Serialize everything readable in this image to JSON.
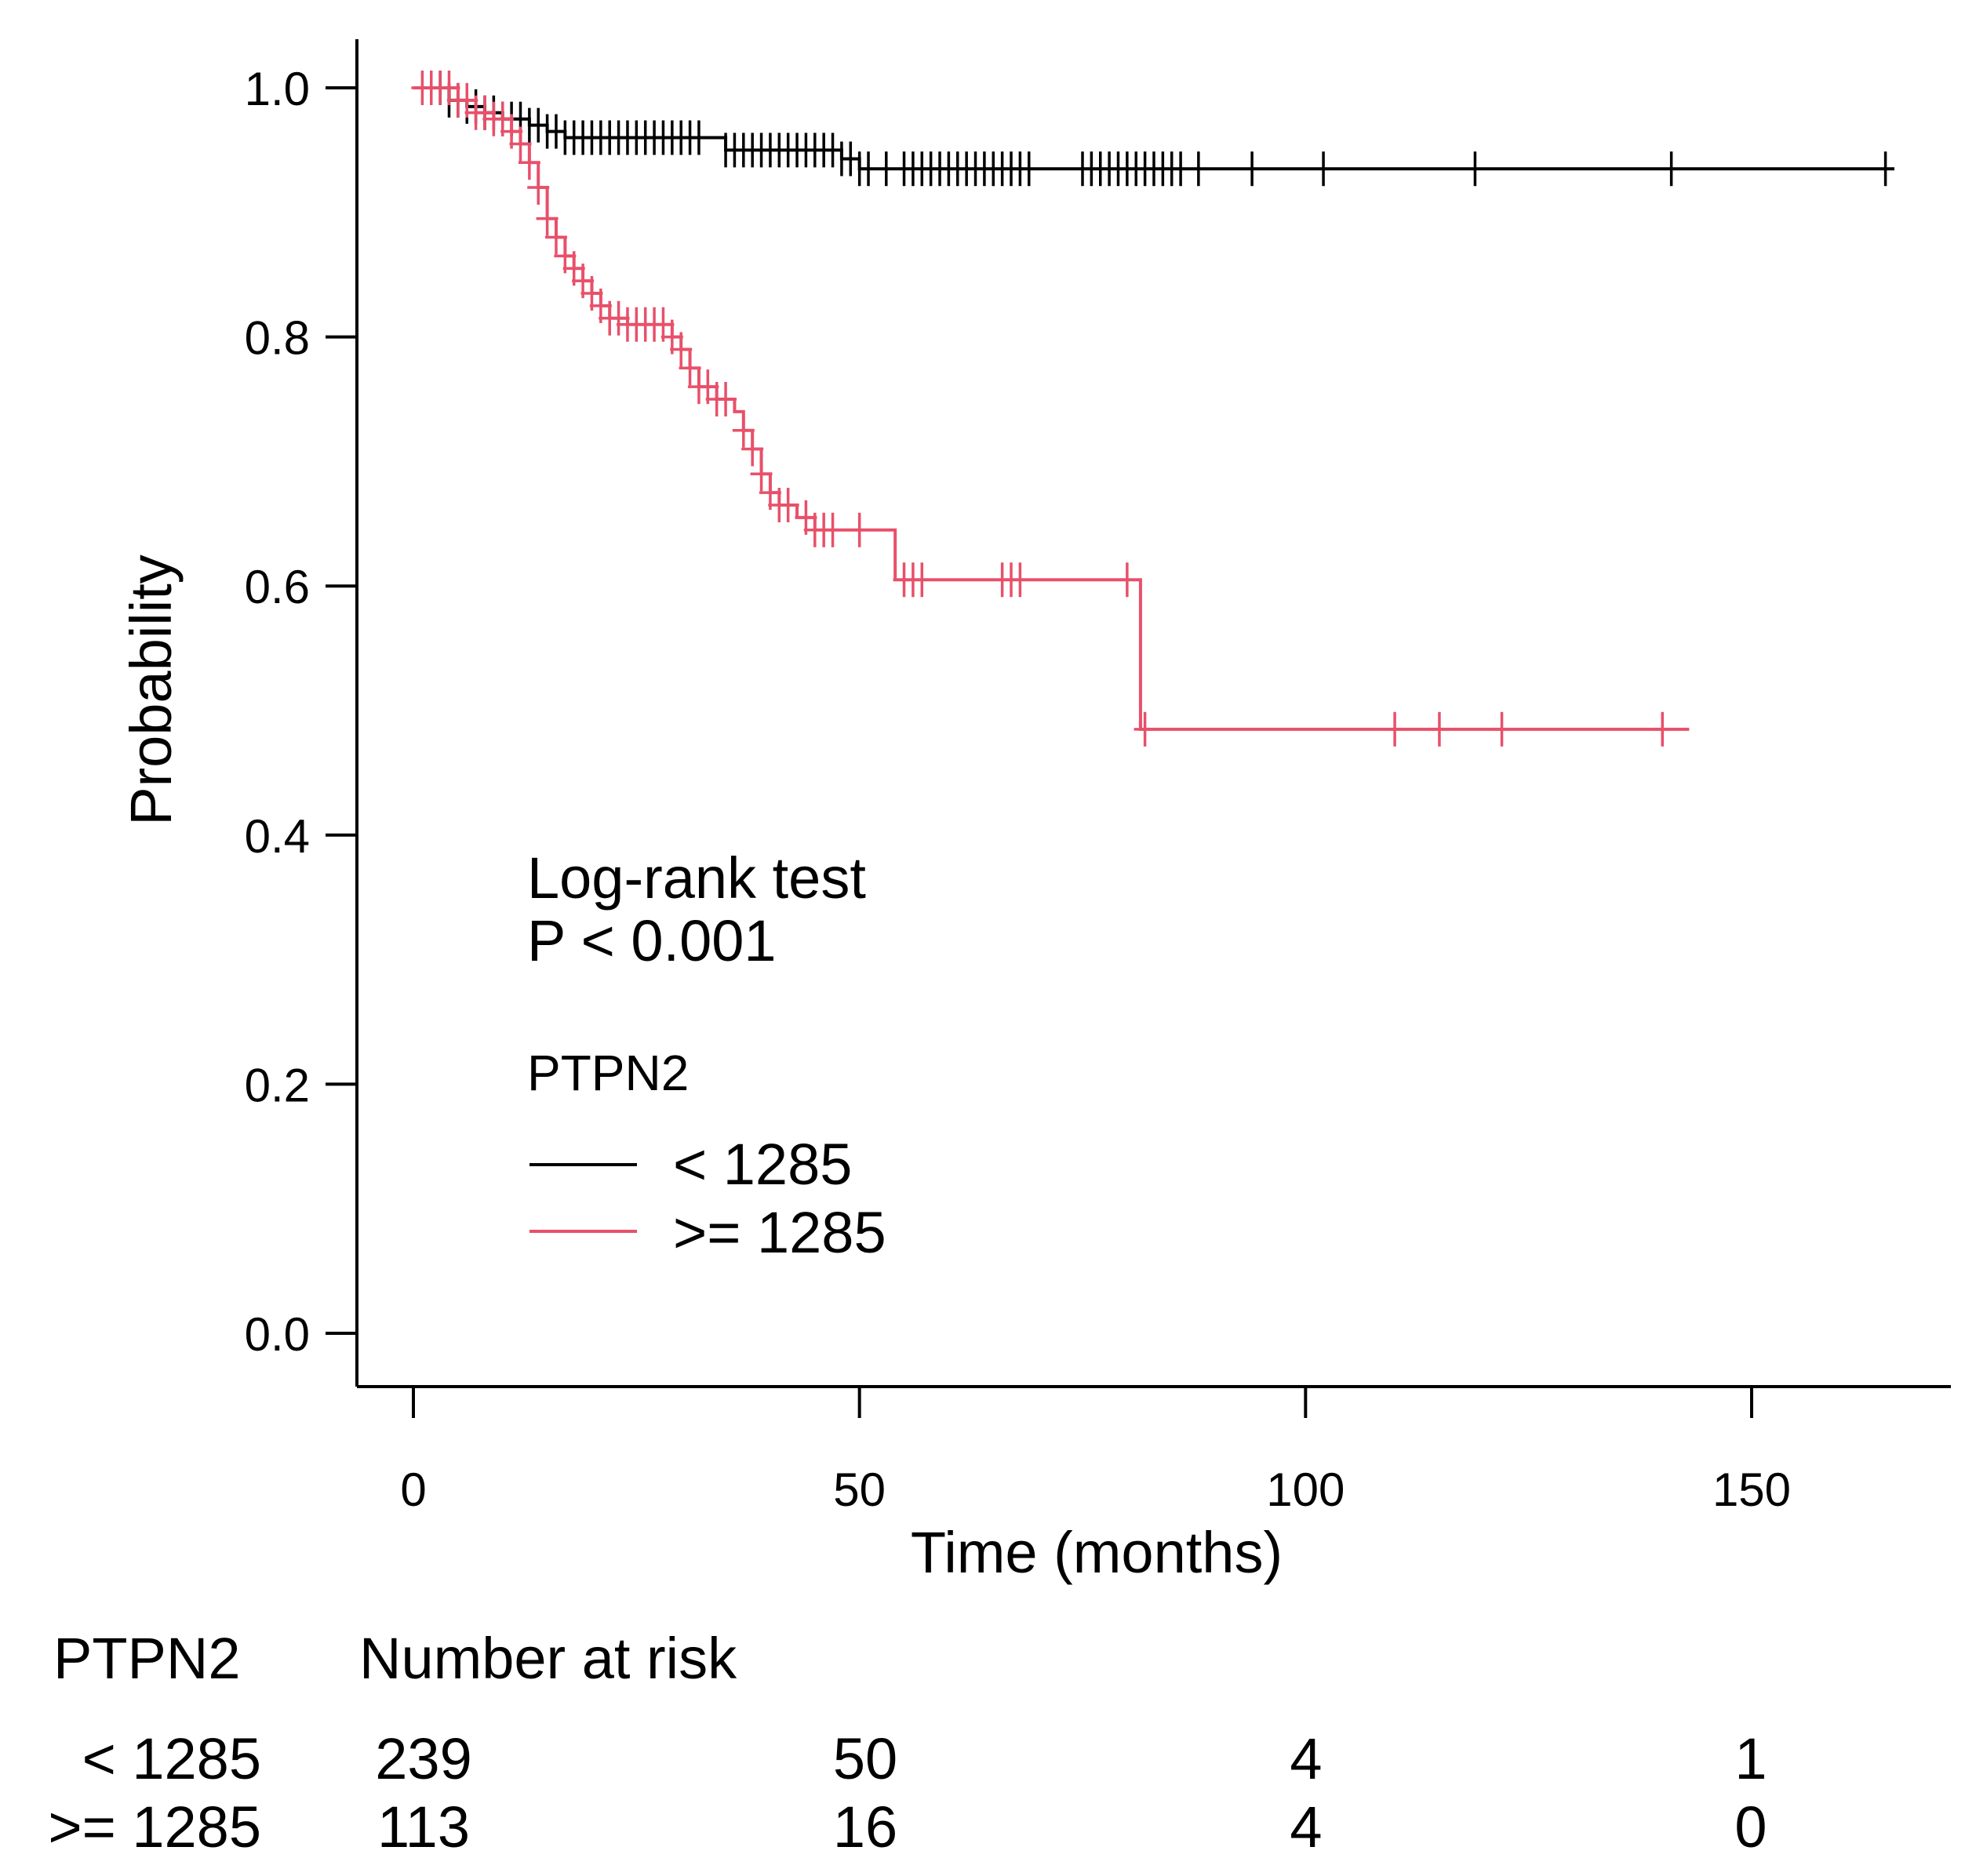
{
  "chart_data": {
    "type": "line",
    "subtype": "kaplan-meier",
    "xlabel": "Time (months)",
    "ylabel": "Probability",
    "xlim": [
      -4,
      172
    ],
    "ylim": [
      -0.04,
      1.04
    ],
    "x_ticks": [
      0,
      50,
      100,
      150
    ],
    "y_ticks": [
      0.0,
      0.2,
      0.4,
      0.6,
      0.8,
      1.0
    ],
    "x_tick_labels": [
      "0",
      "50",
      "100",
      "150"
    ],
    "y_tick_labels": [
      "0.0",
      "0.2",
      "0.4",
      "0.6",
      "0.8",
      "1.0"
    ],
    "annotation": {
      "line1": "Log-rank test",
      "line2": "P < 0.001"
    },
    "legend": {
      "title": "PTPN2",
      "placement": "center-left"
    },
    "series": [
      {
        "name": "< 1285",
        "color": "#000000",
        "steps": [
          [
            0,
            1.0
          ],
          [
            4,
            0.99
          ],
          [
            6,
            0.985
          ],
          [
            8,
            0.98
          ],
          [
            10,
            0.975
          ],
          [
            13,
            0.97
          ],
          [
            15,
            0.965
          ],
          [
            17,
            0.96
          ],
          [
            35,
            0.95
          ],
          [
            48,
            0.943
          ],
          [
            50,
            0.935
          ],
          [
            166,
            0.935
          ]
        ],
        "censor_times": [
          3,
          4,
          5,
          6,
          7,
          8,
          9,
          10,
          11,
          12,
          13,
          14,
          15,
          16,
          17,
          18,
          19,
          20,
          21,
          22,
          23,
          24,
          25,
          26,
          27,
          28,
          29,
          30,
          31,
          32,
          35,
          36,
          37,
          38,
          39,
          40,
          41,
          42,
          43,
          44,
          45,
          46,
          47,
          48,
          49,
          50,
          51,
          53,
          55,
          56,
          57,
          58,
          59,
          60,
          61,
          62,
          63,
          64,
          65,
          66,
          67,
          68,
          69,
          75,
          76,
          77,
          78,
          79,
          80,
          81,
          82,
          83,
          84,
          85,
          86,
          88,
          94,
          102,
          119,
          141,
          165
        ]
      },
      {
        "name": ">= 1285",
        "color": "#e8506a",
        "steps": [
          [
            0,
            1.0
          ],
          [
            5,
            0.99
          ],
          [
            7,
            0.98
          ],
          [
            9,
            0.975
          ],
          [
            11,
            0.965
          ],
          [
            12,
            0.955
          ],
          [
            13,
            0.94
          ],
          [
            14,
            0.92
          ],
          [
            15,
            0.895
          ],
          [
            16,
            0.88
          ],
          [
            17,
            0.865
          ],
          [
            18,
            0.855
          ],
          [
            19,
            0.845
          ],
          [
            20,
            0.835
          ],
          [
            21,
            0.825
          ],
          [
            22,
            0.815
          ],
          [
            24,
            0.81
          ],
          [
            29,
            0.8
          ],
          [
            30,
            0.79
          ],
          [
            31,
            0.775
          ],
          [
            32,
            0.76
          ],
          [
            34,
            0.75
          ],
          [
            36,
            0.74
          ],
          [
            37,
            0.725
          ],
          [
            38,
            0.71
          ],
          [
            39,
            0.69
          ],
          [
            40,
            0.675
          ],
          [
            41,
            0.665
          ],
          [
            43,
            0.655
          ],
          [
            45,
            0.645
          ],
          [
            54,
            0.605
          ],
          [
            81.5,
            0.485
          ],
          [
            143,
            0.485
          ]
        ],
        "censor_times": [
          1,
          2,
          3,
          4,
          5,
          6,
          7,
          8,
          9,
          10,
          11,
          12,
          13,
          14,
          15,
          16,
          17,
          18,
          19,
          20,
          21,
          22,
          23,
          24,
          25,
          26,
          27,
          28,
          29,
          30,
          31,
          32,
          33,
          34,
          35,
          37,
          38,
          39,
          40,
          41,
          42,
          44,
          45,
          46,
          47,
          50,
          55,
          56,
          57,
          66,
          67,
          68,
          80,
          82,
          110,
          115,
          122,
          140
        ]
      }
    ],
    "risk_table": {
      "group_header": "PTPN2",
      "title": "Number at risk",
      "rows": [
        {
          "label": "< 1285",
          "values": [
            "239",
            "50",
            "4",
            "1"
          ]
        },
        {
          "label": ">= 1285",
          "values": [
            "113",
            "16",
            "4",
            "0"
          ]
        }
      ]
    }
  }
}
